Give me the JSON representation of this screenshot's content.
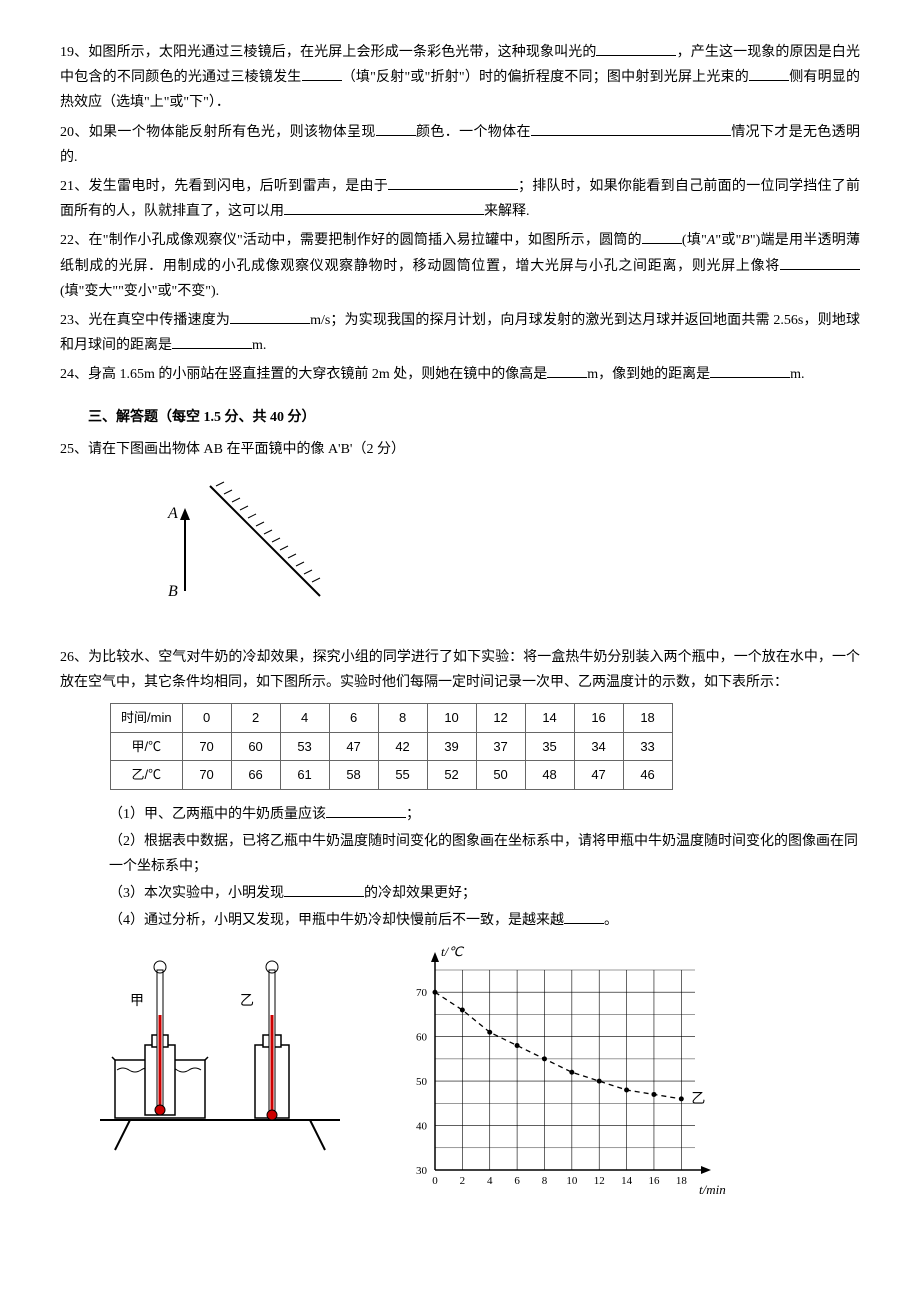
{
  "questions": {
    "q19": {
      "num": "19、",
      "text_a": "如图所示，太阳光通过三棱镜后，在光屏上会形成一条彩色光带，这种现象叫光的",
      "text_b": "，产生这一现象的原因是白光中包含的不同颜色的光通过三棱镜发生",
      "text_c": "（填\"反射\"或\"折射\"）时的偏折程度不同；图中射到光屏上光束的",
      "text_d": "侧有明显的热效应（选填\"上\"或\"下\"）．"
    },
    "q20": {
      "num": "20、",
      "text_a": "如果一个物体能反射所有色光，则该物体呈现",
      "text_b": "颜色．一个物体在",
      "text_c": "情况下才是无色透明的."
    },
    "q21": {
      "num": "21、",
      "text_a": "发生雷电时，先看到闪电，后听到雷声，是由于",
      "text_b": "；排队时，如果你能看到自己前面的一位同学挡住了前面所有的人，队就排直了，这可以用",
      "text_c": "来解释."
    },
    "q22": {
      "num": "22、",
      "text_a": "在\"制作小孔成像观察仪\"活动中，需要把制作好的圆筒插入易拉罐中，如图所示，圆筒的",
      "text_b": "(填\"",
      "italic_a": "A",
      "text_c": "\"或\"",
      "italic_b": "B",
      "text_d": "\")端是用半透明薄纸制成的光屏．用制成的小孔成像观察仪观察静物时，移动圆筒位置，增大光屏与小孔之间距离，则光屏上像将",
      "text_e": "(填\"变大\"\"变小\"或\"不变\")."
    },
    "q23": {
      "num": "23、",
      "text_a": "光在真空中传播速度为",
      "text_b": "m/s；为实现我国的探月计划，向月球发射的激光到达月球并返回地面共需 2.56s，则地球和月球间的距离是",
      "text_c": "m."
    },
    "q24": {
      "num": "24、",
      "text_a": "身高 1.65m 的小丽站在竖直挂置的大穿衣镜前 2m 处，则她在镜中的像高是",
      "text_b": "m，像到她的距离是",
      "text_c": "m."
    }
  },
  "section3": {
    "title": "三、解答题（每空 1.5 分、共 40 分）"
  },
  "q25": {
    "num": "25、",
    "text": "请在下图画出物体 AB 在平面镜中的像 A'B'（2 分）",
    "label_a": "A",
    "label_b": "B"
  },
  "q26": {
    "num": "26、",
    "intro": "为比较水、空气对牛奶的冷却效果，探究小组的同学进行了如下实验：将一盒热牛奶分别装入两个瓶中，一个放在水中，一个放在空气中，其它条件均相同，如下图所示。实验时他们每隔一定时间记录一次甲、乙两温度计的示数，如下表所示：",
    "table": {
      "headers": [
        "时间/min",
        "0",
        "2",
        "4",
        "6",
        "8",
        "10",
        "12",
        "14",
        "16",
        "18"
      ],
      "row1_label": "甲/℃",
      "row1": [
        "70",
        "60",
        "53",
        "47",
        "42",
        "39",
        "37",
        "35",
        "34",
        "33"
      ],
      "row2_label": "乙/℃",
      "row2": [
        "70",
        "66",
        "61",
        "58",
        "55",
        "52",
        "50",
        "48",
        "47",
        "46"
      ]
    },
    "sub1_a": "（1）甲、乙两瓶中的牛奶质量应该",
    "sub1_b": "；",
    "sub2": "（2）根据表中数据，已将乙瓶中牛奶温度随时间变化的图象画在坐标系中，请将甲瓶中牛奶温度随时间变化的图像画在同一个坐标系中；",
    "sub3_a": "（3）本次实验中，小明发现",
    "sub3_b": "的冷却效果更好；",
    "sub4_a": "（4）通过分析，小明又发现，甲瓶中牛奶冷却快慢前后不一致，是越来越",
    "sub4_b": "。",
    "apparatus": {
      "label_jia": "甲",
      "label_yi": "乙"
    },
    "chart": {
      "ylabel": "t/℃",
      "xlabel": "t/min",
      "series_label": "乙",
      "y_ticks": [
        "30",
        "40",
        "50",
        "60",
        "70"
      ],
      "x_ticks": [
        "0",
        "2",
        "4",
        "6",
        "8",
        "10",
        "12",
        "14",
        "16",
        "18"
      ],
      "y_min": 30,
      "y_max": 75,
      "x_min": 0,
      "x_max": 19,
      "grid_color": "#000",
      "yi_points": [
        [
          0,
          70
        ],
        [
          2,
          66
        ],
        [
          4,
          61
        ],
        [
          6,
          58
        ],
        [
          8,
          55
        ],
        [
          10,
          52
        ],
        [
          12,
          50
        ],
        [
          14,
          48
        ],
        [
          16,
          47
        ],
        [
          18,
          46
        ]
      ]
    }
  }
}
